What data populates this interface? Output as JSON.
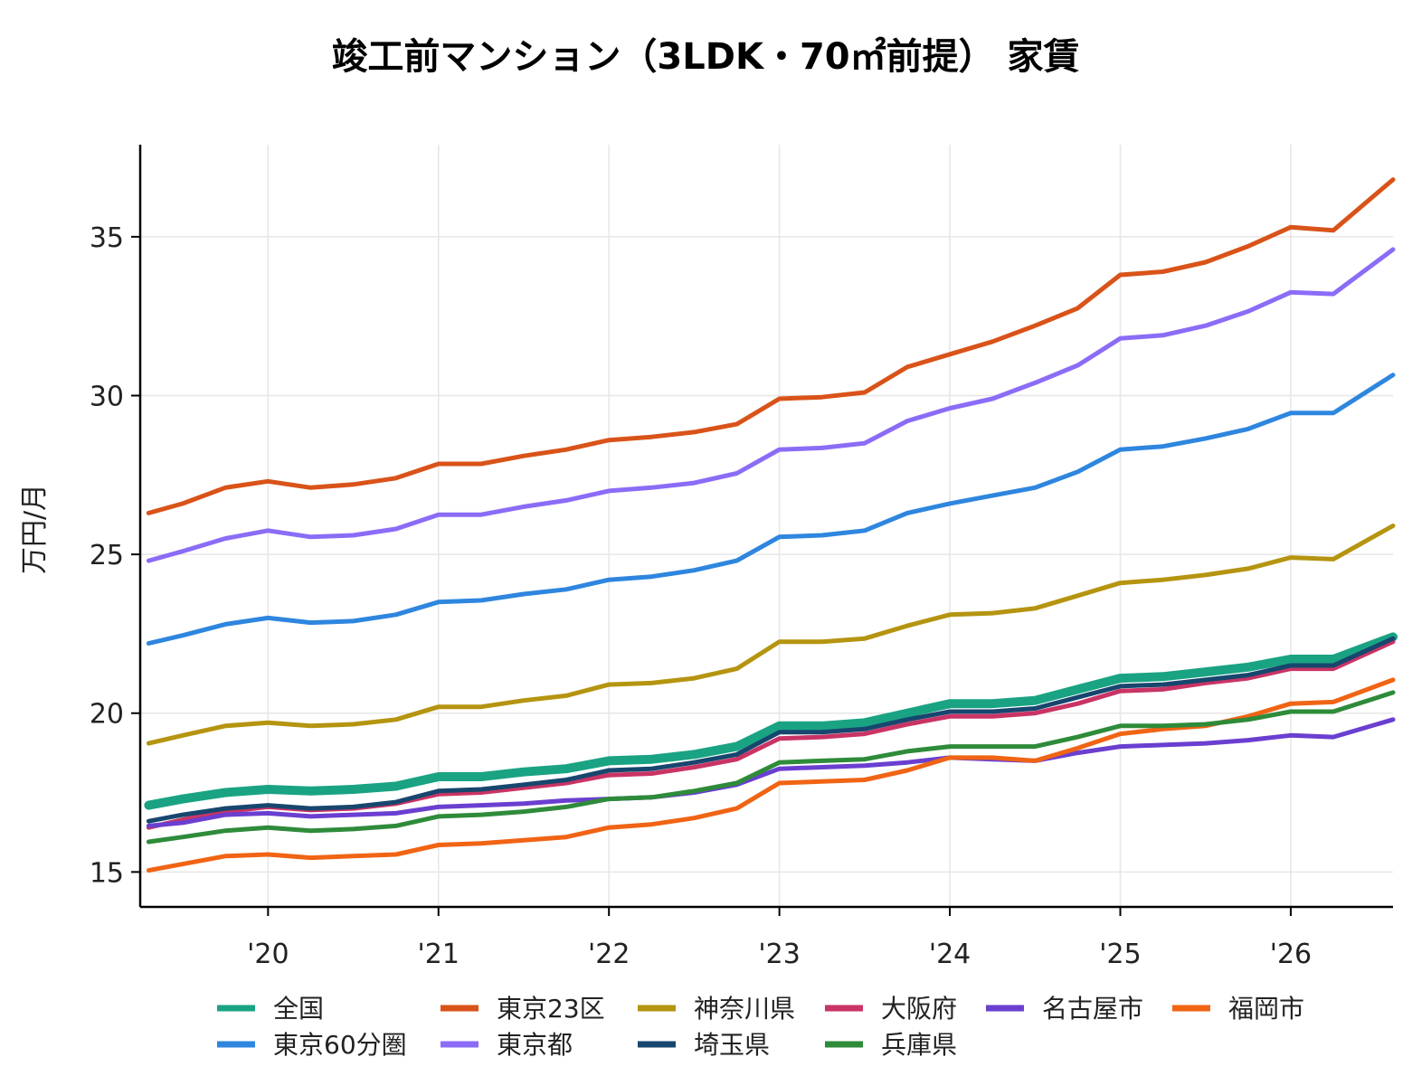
{
  "chart_data": {
    "type": "line",
    "title": "竣工前マンション（3LDK・70㎡前提） 家賃",
    "ylabel": "万円/月",
    "xlabel": "",
    "ylim": [
      13.9,
      37.9
    ],
    "xlim": [
      2019.25,
      2026.6
    ],
    "yticks": [
      15,
      20,
      25,
      30,
      35
    ],
    "ytick_labels": [
      "15",
      "20",
      "25",
      "30",
      "35"
    ],
    "xticks": [
      2020,
      2021,
      2022,
      2023,
      2024,
      2025,
      2026
    ],
    "xtick_labels": [
      "'20",
      "'21",
      "'22",
      "'23",
      "'24",
      "'25",
      "'26"
    ],
    "grid": true,
    "legend_position": "bottom",
    "x": [
      2019.3,
      2019.5,
      2019.75,
      2020.0,
      2020.25,
      2020.5,
      2020.75,
      2021.0,
      2021.25,
      2021.5,
      2021.75,
      2022.0,
      2022.25,
      2022.5,
      2022.75,
      2023.0,
      2023.25,
      2023.5,
      2023.75,
      2024.0,
      2024.25,
      2024.5,
      2024.75,
      2025.0,
      2025.25,
      2025.5,
      2025.75,
      2026.0,
      2026.25,
      2026.6
    ],
    "series": [
      {
        "name": "全国",
        "color": "#1aa383",
        "width": 10,
        "values": [
          17.1,
          17.3,
          17.5,
          17.6,
          17.55,
          17.6,
          17.7,
          18.0,
          18.0,
          18.15,
          18.25,
          18.5,
          18.55,
          18.7,
          18.95,
          19.6,
          19.6,
          19.7,
          20.0,
          20.3,
          20.3,
          20.4,
          20.75,
          21.1,
          21.15,
          21.3,
          21.45,
          21.7,
          21.7,
          22.4
        ]
      },
      {
        "name": "東京23区",
        "color": "#d95319",
        "width": 5,
        "values": [
          26.3,
          26.6,
          27.1,
          27.3,
          27.1,
          27.2,
          27.4,
          27.85,
          27.85,
          28.1,
          28.3,
          28.6,
          28.7,
          28.85,
          29.1,
          29.9,
          29.95,
          30.1,
          30.9,
          31.3,
          31.7,
          32.2,
          32.75,
          33.8,
          33.9,
          34.2,
          34.7,
          35.3,
          35.2,
          36.8
        ]
      },
      {
        "name": "神奈川県",
        "color": "#b59410",
        "width": 5,
        "values": [
          19.05,
          19.3,
          19.6,
          19.7,
          19.6,
          19.65,
          19.8,
          20.2,
          20.2,
          20.4,
          20.55,
          20.9,
          20.95,
          21.1,
          21.4,
          22.25,
          22.25,
          22.35,
          22.75,
          23.1,
          23.15,
          23.3,
          23.7,
          24.1,
          24.2,
          24.35,
          24.55,
          24.9,
          24.85,
          25.9
        ]
      },
      {
        "name": "大阪府",
        "color": "#c93465",
        "width": 5,
        "values": [
          16.4,
          16.65,
          16.9,
          17.05,
          16.95,
          17.0,
          17.15,
          17.45,
          17.5,
          17.65,
          17.8,
          18.05,
          18.1,
          18.3,
          18.55,
          19.2,
          19.25,
          19.35,
          19.65,
          19.9,
          19.9,
          20.0,
          20.3,
          20.7,
          20.75,
          20.95,
          21.1,
          21.4,
          21.4,
          22.25
        ]
      },
      {
        "name": "名古屋市",
        "color": "#6a3fd0",
        "width": 5,
        "values": [
          16.45,
          16.55,
          16.8,
          16.85,
          16.75,
          16.8,
          16.85,
          17.05,
          17.1,
          17.15,
          17.25,
          17.3,
          17.35,
          17.5,
          17.75,
          18.25,
          18.3,
          18.35,
          18.45,
          18.6,
          18.55,
          18.5,
          18.75,
          18.95,
          19.0,
          19.05,
          19.15,
          19.3,
          19.25,
          19.8
        ]
      },
      {
        "name": "福岡市",
        "color": "#f06414",
        "width": 5,
        "values": [
          15.05,
          15.25,
          15.5,
          15.55,
          15.45,
          15.5,
          15.55,
          15.85,
          15.9,
          16.0,
          16.1,
          16.4,
          16.5,
          16.7,
          17.0,
          17.8,
          17.85,
          17.9,
          18.2,
          18.6,
          18.6,
          18.5,
          18.9,
          19.35,
          19.5,
          19.6,
          19.9,
          20.3,
          20.35,
          21.05
        ]
      },
      {
        "name": "東京60分圏",
        "color": "#2e86de",
        "width": 5,
        "values": [
          22.2,
          22.45,
          22.8,
          23.0,
          22.85,
          22.9,
          23.1,
          23.5,
          23.55,
          23.75,
          23.9,
          24.2,
          24.3,
          24.5,
          24.8,
          25.55,
          25.6,
          25.75,
          26.3,
          26.6,
          26.85,
          27.1,
          27.6,
          28.3,
          28.4,
          28.65,
          28.95,
          29.45,
          29.45,
          30.65
        ]
      },
      {
        "name": "東京都",
        "color": "#8b6cf7",
        "width": 5,
        "values": [
          24.8,
          25.1,
          25.5,
          25.75,
          25.55,
          25.6,
          25.8,
          26.25,
          26.25,
          26.5,
          26.7,
          27.0,
          27.1,
          27.25,
          27.55,
          28.3,
          28.35,
          28.5,
          29.2,
          29.6,
          29.9,
          30.4,
          30.95,
          31.8,
          31.9,
          32.2,
          32.65,
          33.25,
          33.2,
          34.6
        ]
      },
      {
        "name": "埼玉県",
        "color": "#17466e",
        "width": 5,
        "values": [
          16.6,
          16.8,
          17.0,
          17.1,
          17.0,
          17.05,
          17.2,
          17.55,
          17.6,
          17.75,
          17.9,
          18.2,
          18.25,
          18.45,
          18.7,
          19.4,
          19.4,
          19.5,
          19.8,
          20.05,
          20.05,
          20.15,
          20.5,
          20.85,
          20.9,
          21.05,
          21.2,
          21.5,
          21.5,
          22.35
        ]
      },
      {
        "name": "兵庫県",
        "color": "#2e8b3a",
        "width": 5,
        "values": [
          15.95,
          16.1,
          16.3,
          16.4,
          16.3,
          16.35,
          16.45,
          16.75,
          16.8,
          16.9,
          17.05,
          17.3,
          17.35,
          17.55,
          17.8,
          18.45,
          18.5,
          18.55,
          18.8,
          18.95,
          18.95,
          18.95,
          19.25,
          19.6,
          19.6,
          19.65,
          19.8,
          20.05,
          20.05,
          20.65
        ]
      }
    ]
  }
}
